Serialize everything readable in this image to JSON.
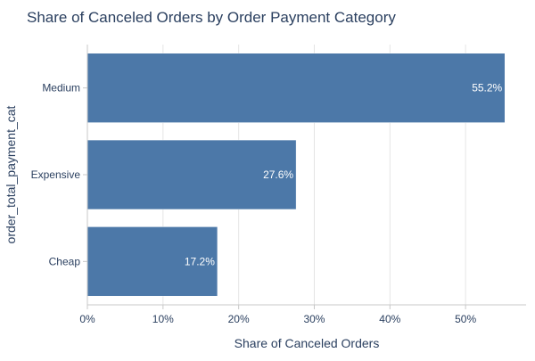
{
  "chart_data": {
    "type": "bar",
    "orientation": "horizontal",
    "title": "Share of Canceled Orders by Order Payment Category",
    "xlabel": "Share of Canceled Orders",
    "ylabel": "order_total_payment_cat",
    "categories": [
      "Medium",
      "Expensive",
      "Cheap"
    ],
    "values": [
      55.2,
      27.6,
      17.2
    ],
    "value_labels": [
      "55.2%",
      "27.6%",
      "17.2%"
    ],
    "xlim": [
      0,
      58
    ],
    "x_ticks": [
      0,
      10,
      20,
      30,
      40,
      50
    ],
    "x_tick_labels": [
      "0%",
      "10%",
      "20%",
      "30%",
      "40%",
      "50%"
    ],
    "grid": "vertical",
    "legend": "none",
    "colors": {
      "bar": "#4c78a8",
      "bar_border": "#ffffff",
      "text": "#2a3f5f",
      "grid": "#e5e5e5",
      "axis": "#c8c8c8",
      "value_label": "#ffffff"
    }
  }
}
